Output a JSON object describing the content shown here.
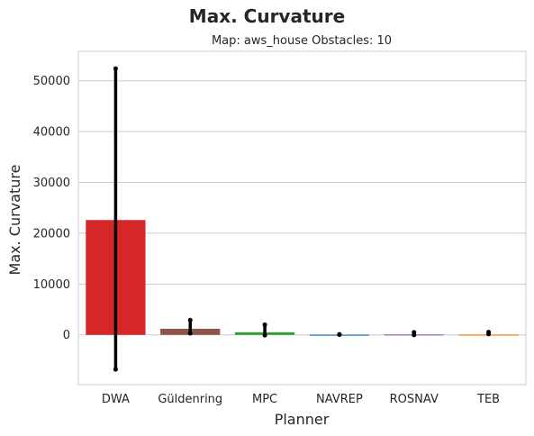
{
  "chart_data": {
    "type": "bar",
    "title": "Max. Curvature",
    "subtitle": "Map: aws_house Obstacles: 10",
    "xlabel": "Planner",
    "ylabel": "Max. Curvature",
    "categories": [
      "DWA",
      "Güldenring",
      "MPC",
      "NAVREP",
      "ROSNAV",
      "TEB"
    ],
    "values": [
      22600,
      1200,
      500,
      40,
      80,
      60
    ],
    "error_low": [
      -6800,
      300,
      -100,
      20,
      -30,
      150
    ],
    "error_high": [
      52400,
      2900,
      2000,
      100,
      500,
      550
    ],
    "colors": [
      "#d62728",
      "#8c564b",
      "#2ca02c",
      "#1f77b4",
      "#9467bd",
      "#ff7f0e"
    ],
    "ylim": [
      -9800,
      55800
    ],
    "yticks": [
      0,
      10000,
      20000,
      30000,
      40000,
      50000
    ],
    "grid": true,
    "legend": "none"
  }
}
